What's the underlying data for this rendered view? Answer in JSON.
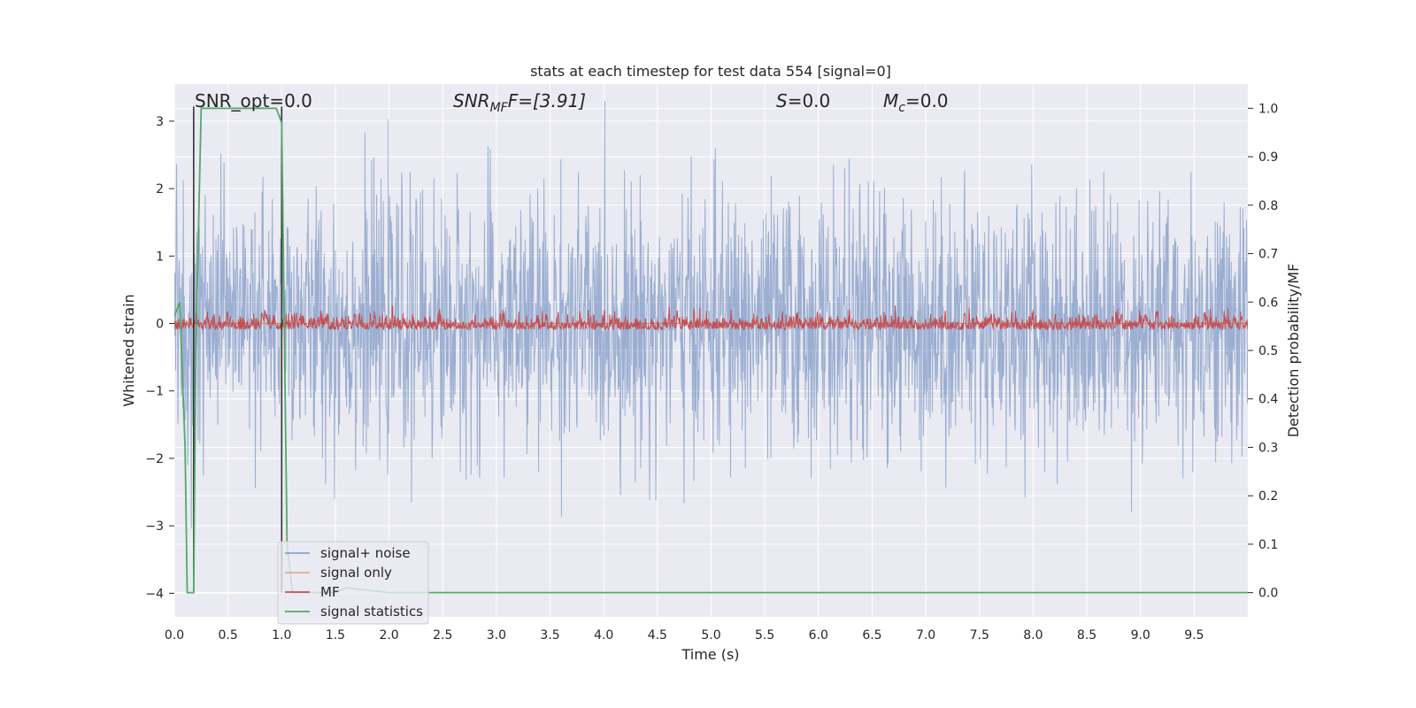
{
  "chart_data": {
    "type": "line",
    "title": "stats at each timestep for test data 554 [signal=0]",
    "xlabel": "Time (s)",
    "ylabel_left": "Whitened strain",
    "ylabel_right": "Detection probability/MF",
    "xlim": [
      0.0,
      10.0
    ],
    "ylim_left": [
      -4.35,
      3.55
    ],
    "ylim_right": [
      -0.05,
      1.05
    ],
    "x_ticks": [
      "0.0",
      "0.5",
      "1.0",
      "1.5",
      "2.0",
      "2.5",
      "3.0",
      "3.5",
      "4.0",
      "4.5",
      "5.0",
      "5.5",
      "6.0",
      "6.5",
      "7.0",
      "7.5",
      "8.0",
      "8.5",
      "9.0",
      "9.5"
    ],
    "y_left_ticks": [
      "−4",
      "−3",
      "−2",
      "−1",
      "0",
      "1",
      "2",
      "3"
    ],
    "y_right_ticks": [
      "0.0",
      "0.1",
      "0.2",
      "0.3",
      "0.4",
      "0.5",
      "0.6",
      "0.7",
      "0.8",
      "0.9",
      "1.0"
    ],
    "grid": true,
    "legend_position": "lower-left",
    "annotations": {
      "snr_opt": "SNR_opt=0.0",
      "snr_mf_base": "SNR",
      "snr_mf_sub": "MF",
      "snr_mf_value": "F=[3.91]",
      "s_label": "S",
      "s_value": "=0.0",
      "mc_base": "M",
      "mc_sub": "c",
      "mc_value": "=0.0"
    },
    "vertical_markers_x": [
      0.18,
      1.0
    ],
    "series": [
      {
        "name": "signal+ noise",
        "color": "#4c72b0",
        "axis": "left",
        "description_values": {
          "mean": 0.0,
          "std": 1.0,
          "min": -4.05,
          "max": 3.3
        }
      },
      {
        "name": "signal only",
        "color": "#dd8452",
        "axis": "left",
        "values_constant": 0.0
      },
      {
        "name": "MF",
        "color": "#c44e52",
        "axis": "right",
        "description_values": {
          "baseline": 0.555,
          "peak": 0.62
        }
      },
      {
        "name": "signal statistics",
        "color": "#55a868",
        "axis": "right",
        "x": [
          0.0,
          0.05,
          0.1,
          0.12,
          0.18,
          0.2,
          0.25,
          0.3,
          0.5,
          0.9,
          0.95,
          1.0,
          1.05,
          1.1,
          1.5,
          1.6,
          2.0,
          10.0
        ],
        "y": [
          0.57,
          0.6,
          0.3,
          0.0,
          0.0,
          0.5,
          1.0,
          1.0,
          1.0,
          1.0,
          1.0,
          0.97,
          0.1,
          0.0,
          0.0,
          0.01,
          0.0,
          0.0
        ]
      }
    ]
  },
  "colors": {
    "axes_bg": "#eaeaf2",
    "grid": "#ffffff",
    "marker_line": "#333333"
  }
}
